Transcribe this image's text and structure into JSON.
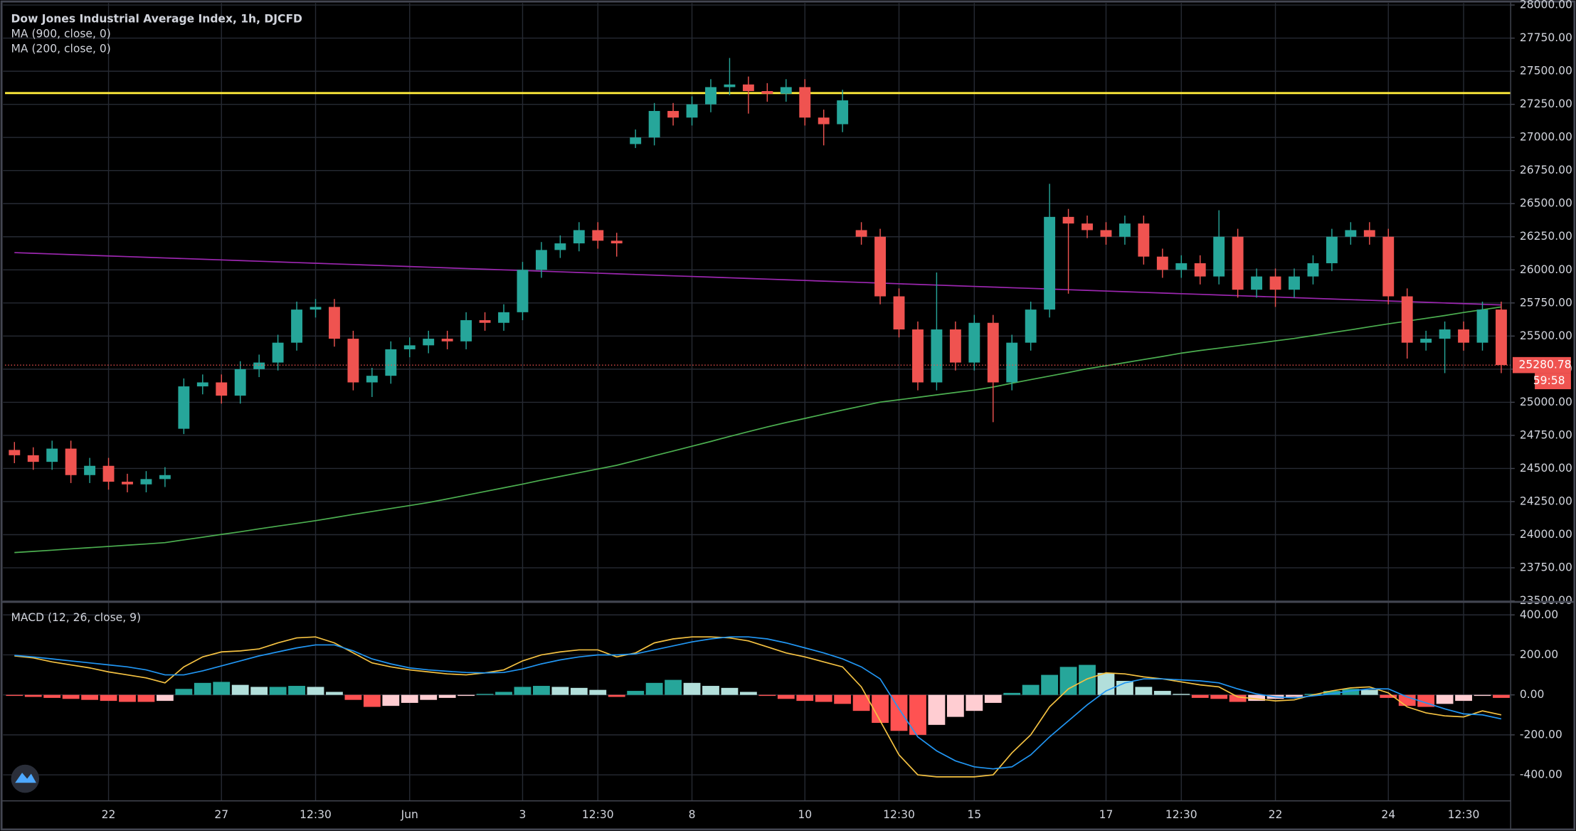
{
  "chart_data": [
    {
      "type": "candlestick",
      "title": "Dow Jones Industrial Average Index, 1h, DJCFD",
      "categories": [
        null,
        null,
        null,
        null,
        null,
        "22",
        null,
        null,
        null,
        null,
        null,
        "27",
        null,
        null,
        null,
        null,
        "12:30",
        null,
        null,
        null,
        null,
        "Jun",
        null,
        null,
        null,
        null,
        null,
        "3",
        null,
        null,
        null,
        "12:30",
        null,
        null,
        null,
        null,
        "8",
        null,
        null,
        null,
        null,
        null,
        "10",
        null,
        null,
        null,
        null,
        "12:30",
        null,
        null,
        null,
        "15",
        null,
        null,
        null,
        null,
        null,
        null,
        "17",
        null,
        null,
        null,
        "12:30",
        null,
        null,
        null,
        null,
        "22",
        null,
        null,
        null,
        null,
        null,
        "24",
        null,
        null,
        null,
        "12:30",
        null,
        null
      ],
      "open": [
        24640,
        24600,
        24550,
        24650,
        24450,
        24520,
        24400,
        24380,
        24420,
        24800,
        25120,
        25150,
        25050,
        25250,
        25300,
        25450,
        25700,
        25720,
        25480,
        25150,
        25200,
        25400,
        25430,
        25480,
        25460,
        25620,
        25600,
        25680,
        26000,
        26150,
        26200,
        26300,
        26220,
        26950,
        27000,
        27200,
        27150,
        27250,
        27380,
        27400,
        27350,
        27330,
        27380,
        27150,
        27100,
        26300,
        26250,
        25800,
        25550,
        25150,
        25550,
        25300,
        25600,
        25150,
        25450,
        25700,
        26400,
        26350,
        26300,
        26250,
        26350,
        26100,
        26000,
        26050,
        25950,
        26250,
        25850,
        25950,
        25850,
        25950,
        26050,
        26250,
        26300,
        26250,
        25800,
        25450,
        25480,
        25550,
        25450,
        25700
      ],
      "high": [
        24700,
        24660,
        24710,
        24710,
        24580,
        24580,
        24460,
        24480,
        24510,
        25180,
        25210,
        25210,
        25310,
        25360,
        25510,
        25760,
        25780,
        25780,
        25540,
        25260,
        25460,
        25490,
        25540,
        25540,
        25680,
        25680,
        25740,
        26060,
        26210,
        26260,
        26360,
        26360,
        26280,
        27060,
        27260,
        27260,
        27310,
        27440,
        27600,
        27460,
        27410,
        27440,
        27440,
        27210,
        27360,
        26360,
        26310,
        25860,
        25610,
        25980,
        25610,
        25660,
        25660,
        25510,
        25760,
        26650,
        26460,
        26410,
        26360,
        26410,
        26410,
        26160,
        26110,
        26110,
        26450,
        26310,
        26010,
        26010,
        26010,
        26110,
        26310,
        26360,
        26360,
        26310,
        25860,
        25540,
        25610,
        25610,
        25760,
        25760
      ],
      "low": [
        24540,
        24490,
        24490,
        24390,
        24390,
        24340,
        24320,
        24320,
        24360,
        24760,
        25060,
        24990,
        24990,
        25190,
        25240,
        25390,
        25640,
        25420,
        25090,
        25040,
        25140,
        25340,
        25370,
        25400,
        25400,
        25540,
        25540,
        25620,
        25940,
        26090,
        26140,
        26160,
        26100,
        26920,
        26940,
        27090,
        27090,
        27190,
        27320,
        27180,
        27270,
        27270,
        27090,
        26940,
        27040,
        26190,
        25740,
        25490,
        25090,
        25090,
        25240,
        25240,
        24850,
        25090,
        25390,
        25640,
        25820,
        26240,
        26190,
        26190,
        26040,
        25940,
        25940,
        25890,
        25890,
        25790,
        25790,
        25720,
        25790,
        25890,
        25990,
        26190,
        26190,
        25740,
        25330,
        25390,
        25220,
        25390,
        25390,
        25220
      ],
      "close": [
        24600,
        24550,
        24650,
        24450,
        24520,
        24400,
        24380,
        24420,
        24450,
        25120,
        25150,
        25050,
        25250,
        25300,
        25450,
        25700,
        25720,
        25480,
        25150,
        25200,
        25400,
        25430,
        25480,
        25460,
        25620,
        25600,
        25680,
        26000,
        26150,
        26200,
        26300,
        26220,
        26200,
        27000,
        27200,
        27150,
        27250,
        27380,
        27400,
        27350,
        27330,
        27380,
        27150,
        27100,
        27280,
        26250,
        25800,
        25550,
        25150,
        25550,
        25300,
        25600,
        25150,
        25450,
        25700,
        26400,
        26350,
        26300,
        26250,
        26350,
        26100,
        26000,
        26050,
        25950,
        26250,
        25850,
        25950,
        25850,
        25950,
        26050,
        26250,
        26300,
        26250,
        25800,
        25450,
        25480,
        25550,
        25450,
        25700,
        25280.78
      ],
      "up_color": "#26a69a",
      "down_color": "#ef5350",
      "series": [
        {
          "name": "MA (900, close, 0)",
          "color": "#9c27b0",
          "values": [
            26130,
            26125,
            26120,
            26115,
            26110,
            26105,
            26100,
            26095,
            26090,
            26085,
            26080,
            26075,
            26070,
            26065,
            26060,
            26055,
            26050,
            26045,
            26040,
            26035,
            26030,
            26025,
            26020,
            26015,
            26010,
            26005,
            26000,
            25995,
            25990,
            25985,
            25980,
            25975,
            25970,
            25965,
            25960,
            25955,
            25950,
            25945,
            25940,
            25935,
            25930,
            25925,
            25920,
            25915,
            25910,
            25905,
            25900,
            25895,
            25890,
            25885,
            25880,
            25875,
            25870,
            25865,
            25860,
            25855,
            25850,
            25845,
            25840,
            25835,
            25830,
            25825,
            25820,
            25815,
            25810,
            25805,
            25800,
            25795,
            25790,
            25785,
            25780,
            25775,
            25770,
            25765,
            25760,
            25755,
            25750,
            25745,
            25740,
            25735
          ]
        },
        {
          "name": "MA (200, close, 0)",
          "color": "#4caf50",
          "values": [
            23865,
            23874,
            23883,
            23893,
            23902,
            23911,
            23921,
            23930,
            23940,
            23961,
            23981,
            24002,
            24022,
            24044,
            24065,
            24085,
            24106,
            24129,
            24153,
            24175,
            24198,
            24220,
            24243,
            24270,
            24298,
            24326,
            24354,
            24382,
            24412,
            24440,
            24468,
            24496,
            24524,
            24560,
            24596,
            24632,
            24668,
            24704,
            24742,
            24778,
            24814,
            24847,
            24878,
            24910,
            24941,
            24971,
            25001,
            25019,
            25037,
            25056,
            25074,
            25092,
            25115,
            25144,
            25171,
            25198,
            25225,
            25253,
            25276,
            25299,
            25323,
            25346,
            25371,
            25391,
            25409,
            25427,
            25445,
            25464,
            25482,
            25504,
            25526,
            25547,
            25570,
            25592,
            25613,
            25634,
            25655,
            25678,
            25699,
            25720
          ]
        }
      ],
      "hline": {
        "value": 27335,
        "color": "#ffeb3b"
      },
      "countdown": "59:58",
      "ylim": [
        23500,
        28000
      ],
      "yticks": [
        {
          "value": 28000,
          "label": "28000.00"
        },
        {
          "value": 27750,
          "label": "27750.00"
        },
        {
          "value": 27500,
          "label": "27500.00"
        },
        {
          "value": 27250,
          "label": "27250.00"
        },
        {
          "value": 27000,
          "label": "27000.00"
        },
        {
          "value": 26750,
          "label": "26750.00"
        },
        {
          "value": 26500,
          "label": "26500.00"
        },
        {
          "value": 26250,
          "label": "26250.00"
        },
        {
          "value": 26000,
          "label": "26000.00"
        },
        {
          "value": 25750,
          "label": "25750.00"
        },
        {
          "value": 25500,
          "label": "25500.00"
        },
        {
          "value": 25250,
          "label": "25250.00"
        },
        {
          "value": 25000,
          "label": "25000.00"
        },
        {
          "value": 24750,
          "label": "24750.00"
        },
        {
          "value": 24500,
          "label": "24500.00"
        },
        {
          "value": 24250,
          "label": "24250.00"
        },
        {
          "value": 24000,
          "label": "24000.00"
        },
        {
          "value": 23750,
          "label": "23750.00"
        },
        {
          "value": 23500,
          "label": "23500.00"
        }
      ],
      "grid": true
    },
    {
      "type": "macd",
      "title": "MACD (12, 26, close, 9)",
      "histogram": [
        -5,
        -10,
        -15,
        -20,
        -25,
        -30,
        -35,
        -35,
        -30,
        30,
        60,
        65,
        50,
        40,
        40,
        45,
        40,
        15,
        -25,
        -60,
        -55,
        -40,
        -25,
        -15,
        -5,
        5,
        15,
        40,
        45,
        40,
        35,
        25,
        -10,
        20,
        60,
        75,
        60,
        45,
        35,
        15,
        -5,
        -20,
        -30,
        -35,
        -45,
        -80,
        -140,
        -180,
        -200,
        -150,
        -110,
        -80,
        -40,
        10,
        50,
        100,
        140,
        150,
        110,
        70,
        40,
        20,
        5,
        -15,
        -20,
        -35,
        -30,
        -20,
        -10,
        5,
        20,
        30,
        25,
        -15,
        -55,
        -60,
        -45,
        -30,
        -5,
        -15
      ],
      "hist_colors": {
        "up_rising": "#26a69a",
        "up_falling": "#b2dfdb",
        "down_falling": "#ff5252",
        "down_rising": "#ffcdd2"
      },
      "series": [
        {
          "color": "#f5c242",
          "values": [
            195,
            185,
            165,
            150,
            135,
            115,
            100,
            85,
            60,
            140,
            190,
            215,
            220,
            230,
            260,
            285,
            290,
            260,
            210,
            160,
            140,
            125,
            115,
            105,
            100,
            110,
            125,
            170,
            200,
            215,
            225,
            225,
            190,
            210,
            260,
            280,
            290,
            290,
            285,
            270,
            240,
            210,
            190,
            165,
            140,
            40,
            -130,
            -300,
            -400,
            -410,
            -410,
            -410,
            -400,
            -290,
            -200,
            -60,
            30,
            80,
            110,
            105,
            90,
            80,
            65,
            50,
            40,
            -10,
            -20,
            -30,
            -25,
            0,
            20,
            35,
            40,
            10,
            -60,
            -90,
            -105,
            -110,
            -80,
            -100
          ]
        },
        {
          "color": "#2196f3",
          "values": [
            198,
            190,
            180,
            170,
            160,
            150,
            140,
            125,
            100,
            100,
            120,
            145,
            170,
            195,
            215,
            235,
            250,
            250,
            220,
            180,
            155,
            135,
            125,
            118,
            112,
            110,
            112,
            130,
            155,
            175,
            190,
            200,
            200,
            205,
            225,
            245,
            265,
            280,
            290,
            290,
            280,
            260,
            235,
            210,
            180,
            140,
            80,
            -70,
            -210,
            -280,
            -330,
            -360,
            -370,
            -360,
            -300,
            -210,
            -130,
            -50,
            20,
            60,
            80,
            80,
            75,
            70,
            60,
            30,
            5,
            -10,
            -15,
            -5,
            5,
            20,
            30,
            30,
            -10,
            -40,
            -70,
            -95,
            -100,
            -120
          ]
        }
      ],
      "ylim": [
        -530,
        460
      ],
      "yticks": [
        {
          "value": 400,
          "label": "400.00"
        },
        {
          "value": 200,
          "label": "200.00"
        },
        {
          "value": 0,
          "label": "0.00"
        },
        {
          "value": -200,
          "label": "-200.00"
        },
        {
          "value": -400,
          "label": "-400.00"
        }
      ],
      "grid": true
    }
  ]
}
